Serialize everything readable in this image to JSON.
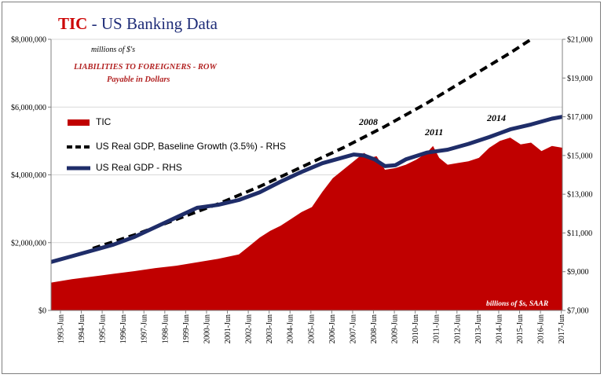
{
  "title": {
    "prefix": "TIC",
    "rest": " - US Banking Data"
  },
  "units_label": "millions of $'s",
  "notes": {
    "line1": "LIABILITIES TO FOREIGNERS  - ROW",
    "line2": "Payable in Dollars"
  },
  "rhs_units": "billions of $s, SAAR",
  "annotations": [
    "2008",
    "2011",
    "2014"
  ],
  "colors": {
    "tic": "#c00000",
    "gdp": "#1f2d69",
    "baseline": "#000000",
    "title_red": "#cc0000",
    "title_blue": "#1f2d78",
    "note_red": "#b22222"
  },
  "chart_data": {
    "type": "area",
    "title": "TIC - US Banking Data",
    "x_ticks": [
      "1993-Jun",
      "1994-Jun",
      "1995-Jun",
      "1996-Jun",
      "1997-Jun",
      "1998-Jun",
      "1999-Jun",
      "2000-Jun",
      "2001-Jun",
      "2002-Jun",
      "2003-Jun",
      "2004-Jun",
      "2005-Jun",
      "2006-Jun",
      "2007-Jun",
      "2008-Jun",
      "2009-Jun",
      "2010-Jun",
      "2011-Jun",
      "2012-Jun",
      "2013-Jun",
      "2014-Jun",
      "2015-Jun",
      "2016-Jun",
      "2017-Jun"
    ],
    "x_range": [
      1993.0,
      2017.5
    ],
    "y_left": {
      "ticks": [
        "$0",
        "$2,000,000",
        "$4,000,000",
        "$6,000,000",
        "$8,000,000"
      ],
      "range": [
        0,
        8000000
      ]
    },
    "y_right": {
      "ticks": [
        "$7,000",
        "$9,000",
        "$11,000",
        "$13,000",
        "$15,000",
        "$17,000",
        "$19,000",
        "$21,000"
      ],
      "range": [
        7000,
        21000
      ]
    },
    "legend": "left",
    "series": [
      {
        "name": "TIC",
        "axis": "left",
        "style": "area",
        "x": [
          1993.0,
          1994.0,
          1995.0,
          1996.0,
          1997.0,
          1998.0,
          1999.0,
          2000.0,
          2001.0,
          2002.0,
          2002.5,
          2003.0,
          2003.5,
          2004.0,
          2004.5,
          2005.0,
          2005.5,
          2006.0,
          2006.5,
          2007.0,
          2007.5,
          2008.0,
          2008.3,
          2008.6,
          2009.0,
          2009.5,
          2010.0,
          2010.5,
          2011.0,
          2011.3,
          2011.6,
          2012.0,
          2012.5,
          2013.0,
          2013.5,
          2014.0,
          2014.5,
          2015.0,
          2015.5,
          2016.0,
          2016.5,
          2017.0,
          2017.5
        ],
        "values": [
          820000,
          920000,
          1000000,
          1080000,
          1160000,
          1250000,
          1320000,
          1420000,
          1520000,
          1650000,
          1900000,
          2150000,
          2350000,
          2500000,
          2700000,
          2900000,
          3050000,
          3500000,
          3900000,
          4150000,
          4400000,
          4650000,
          4500000,
          4550000,
          4150000,
          4200000,
          4300000,
          4450000,
          4650000,
          4850000,
          4500000,
          4300000,
          4350000,
          4400000,
          4500000,
          4800000,
          5000000,
          5100000,
          4900000,
          4950000,
          4700000,
          4850000,
          4800000
        ]
      },
      {
        "name": "US Real GDP, Baseline Growth (3.5%) - RHS",
        "axis": "right",
        "style": "dashed",
        "x": [
          1995.0,
          1997.0,
          1999.0,
          2001.0,
          2003.0,
          2005.0,
          2007.0,
          2009.0,
          2011.0,
          2013.0,
          2015.0,
          2017.0
        ],
        "values": [
          10200,
          10900,
          11700,
          12500,
          13400,
          14400,
          15400,
          16500,
          17700,
          19000,
          20300,
          21700
        ]
      },
      {
        "name": "US Real GDP - RHS",
        "axis": "right",
        "style": "line",
        "x": [
          1993.0,
          1994.0,
          1995.0,
          1996.0,
          1997.0,
          1998.0,
          1999.0,
          2000.0,
          2001.0,
          2002.0,
          2003.0,
          2004.0,
          2005.0,
          2006.0,
          2007.0,
          2007.5,
          2008.0,
          2008.5,
          2009.0,
          2009.5,
          2010.0,
          2011.0,
          2012.0,
          2013.0,
          2014.0,
          2015.0,
          2016.0,
          2017.0,
          2017.5
        ],
        "values": [
          9500,
          9800,
          10100,
          10400,
          10800,
          11300,
          11800,
          12300,
          12450,
          12700,
          13100,
          13650,
          14150,
          14600,
          14900,
          15050,
          15000,
          14800,
          14450,
          14500,
          14800,
          15150,
          15300,
          15600,
          15950,
          16350,
          16600,
          16900,
          17000
        ]
      }
    ]
  }
}
